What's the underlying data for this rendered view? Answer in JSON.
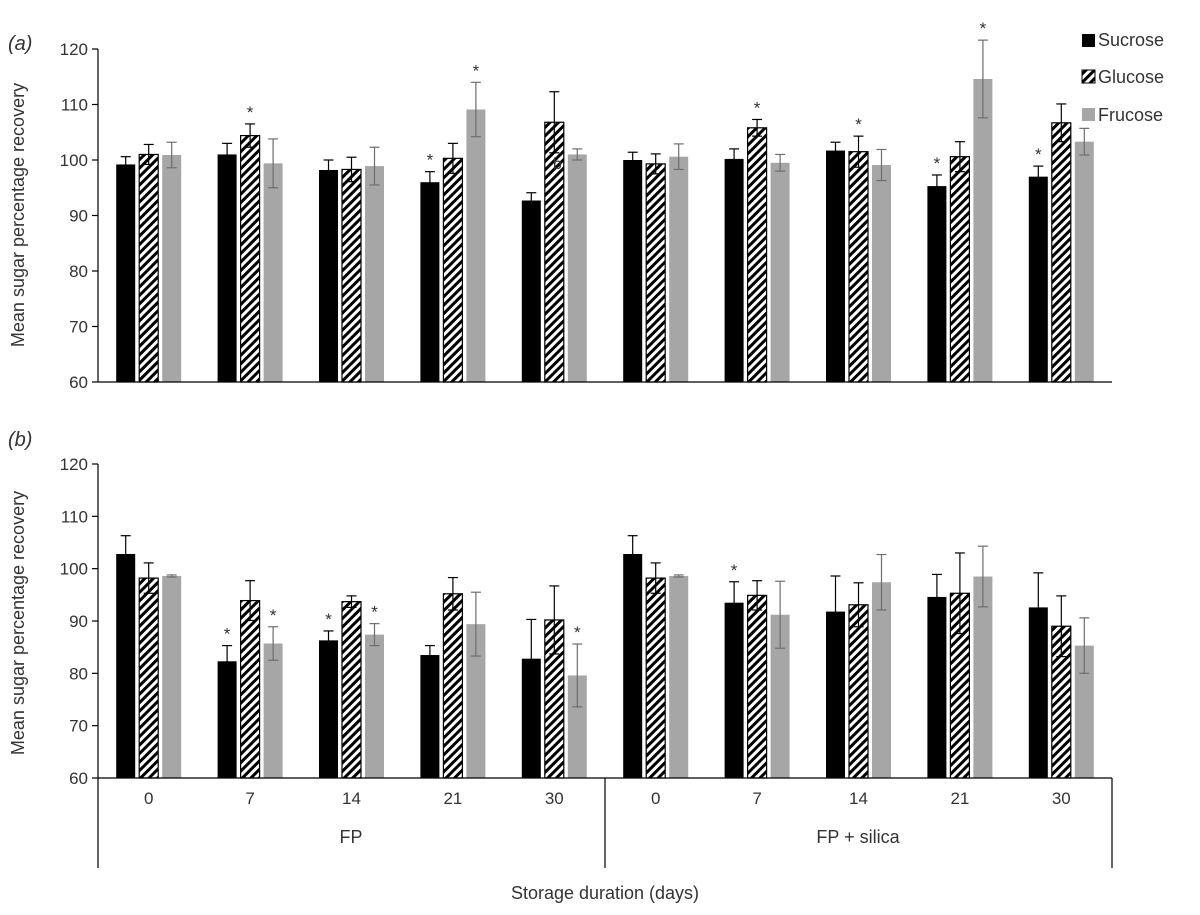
{
  "chart_data": [
    {
      "panel": "a",
      "panel_label": "(a)",
      "type": "bar",
      "ylabel": "Mean sugar percentage recovery",
      "ylim": [
        60,
        120
      ],
      "yticks": [
        60,
        70,
        80,
        90,
        100,
        110,
        120
      ],
      "groups": [
        {
          "label": "FP",
          "categories": [
            "0",
            "7",
            "14",
            "21",
            "30"
          ]
        },
        {
          "label": "FP + silica",
          "categories": [
            "0",
            "7",
            "14",
            "21",
            "30"
          ]
        }
      ],
      "series": [
        {
          "name": "Sucrose",
          "color": "#000000",
          "pattern": "solid",
          "values": [
            99.2,
            101.0,
            98.2,
            96.0,
            92.7,
            100.0,
            100.2,
            101.7,
            95.3,
            97.0
          ],
          "errors": [
            1.4,
            2.0,
            1.8,
            1.9,
            1.4,
            1.4,
            1.8,
            1.5,
            2.0,
            1.9
          ],
          "stars": [
            false,
            false,
            false,
            true,
            false,
            false,
            false,
            false,
            true,
            true
          ]
        },
        {
          "name": "Glucose",
          "color": "#000000",
          "pattern": "hatch",
          "values": [
            101.0,
            104.4,
            98.3,
            100.3,
            106.8,
            99.3,
            105.8,
            101.5,
            100.6,
            106.7
          ],
          "errors": [
            1.8,
            2.1,
            2.2,
            2.7,
            5.5,
            1.8,
            1.5,
            2.8,
            2.7,
            3.4
          ],
          "stars": [
            false,
            true,
            false,
            false,
            false,
            false,
            true,
            true,
            false,
            false
          ]
        },
        {
          "name": "Frucose",
          "color": "#a6a6a6",
          "pattern": "solid",
          "values": [
            100.9,
            99.4,
            98.9,
            109.1,
            101.0,
            100.6,
            99.5,
            99.1,
            114.6,
            103.3
          ],
          "errors": [
            2.3,
            4.4,
            3.4,
            4.9,
            1.0,
            2.3,
            1.5,
            2.8,
            7.0,
            2.4
          ],
          "stars": [
            false,
            false,
            false,
            true,
            false,
            false,
            false,
            false,
            true,
            false
          ]
        }
      ],
      "annotations": [
        {
          "text": "b",
          "category_index": 4,
          "value": 98
        }
      ],
      "legend": {
        "placement": "top-right"
      }
    },
    {
      "panel": "b",
      "panel_label": "(b)",
      "type": "bar",
      "ylabel": "Mean sugar percentage recovery",
      "xlabel": "Storage duration (days)",
      "ylim": [
        60,
        120
      ],
      "yticks": [
        60,
        70,
        80,
        90,
        100,
        110,
        120
      ],
      "groups": [
        {
          "label": "FP",
          "categories": [
            "0",
            "7",
            "14",
            "21",
            "30"
          ]
        },
        {
          "label": "FP + silica",
          "categories": [
            "0",
            "7",
            "14",
            "21",
            "30"
          ]
        }
      ],
      "series": [
        {
          "name": "Sucrose",
          "color": "#000000",
          "pattern": "solid",
          "values": [
            102.8,
            82.3,
            86.3,
            83.5,
            82.8,
            102.8,
            93.5,
            91.8,
            94.6,
            92.6
          ],
          "errors": [
            3.5,
            3.0,
            1.8,
            1.8,
            7.5,
            3.5,
            4.0,
            6.8,
            4.3,
            6.6
          ],
          "stars": [
            false,
            true,
            true,
            false,
            false,
            false,
            true,
            false,
            false,
            false
          ]
        },
        {
          "name": "Glucose",
          "color": "#000000",
          "pattern": "hatch",
          "values": [
            98.2,
            93.9,
            93.7,
            95.2,
            90.2,
            98.2,
            94.9,
            93.1,
            95.3,
            89.0
          ],
          "errors": [
            2.9,
            3.8,
            1.1,
            3.1,
            6.5,
            2.9,
            2.8,
            4.2,
            7.7,
            5.8
          ],
          "stars": [
            false,
            false,
            false,
            false,
            false,
            false,
            false,
            false,
            false,
            false
          ]
        },
        {
          "name": "Frucose",
          "color": "#a6a6a6",
          "pattern": "solid",
          "values": [
            98.6,
            85.7,
            87.4,
            89.4,
            79.6,
            98.6,
            91.2,
            97.4,
            98.5,
            85.3
          ],
          "errors": [
            0.2,
            3.2,
            2.1,
            6.1,
            6.0,
            0.2,
            6.4,
            5.3,
            5.8,
            5.3
          ],
          "stars": [
            false,
            true,
            true,
            false,
            true,
            false,
            false,
            false,
            false,
            false
          ]
        }
      ]
    }
  ]
}
